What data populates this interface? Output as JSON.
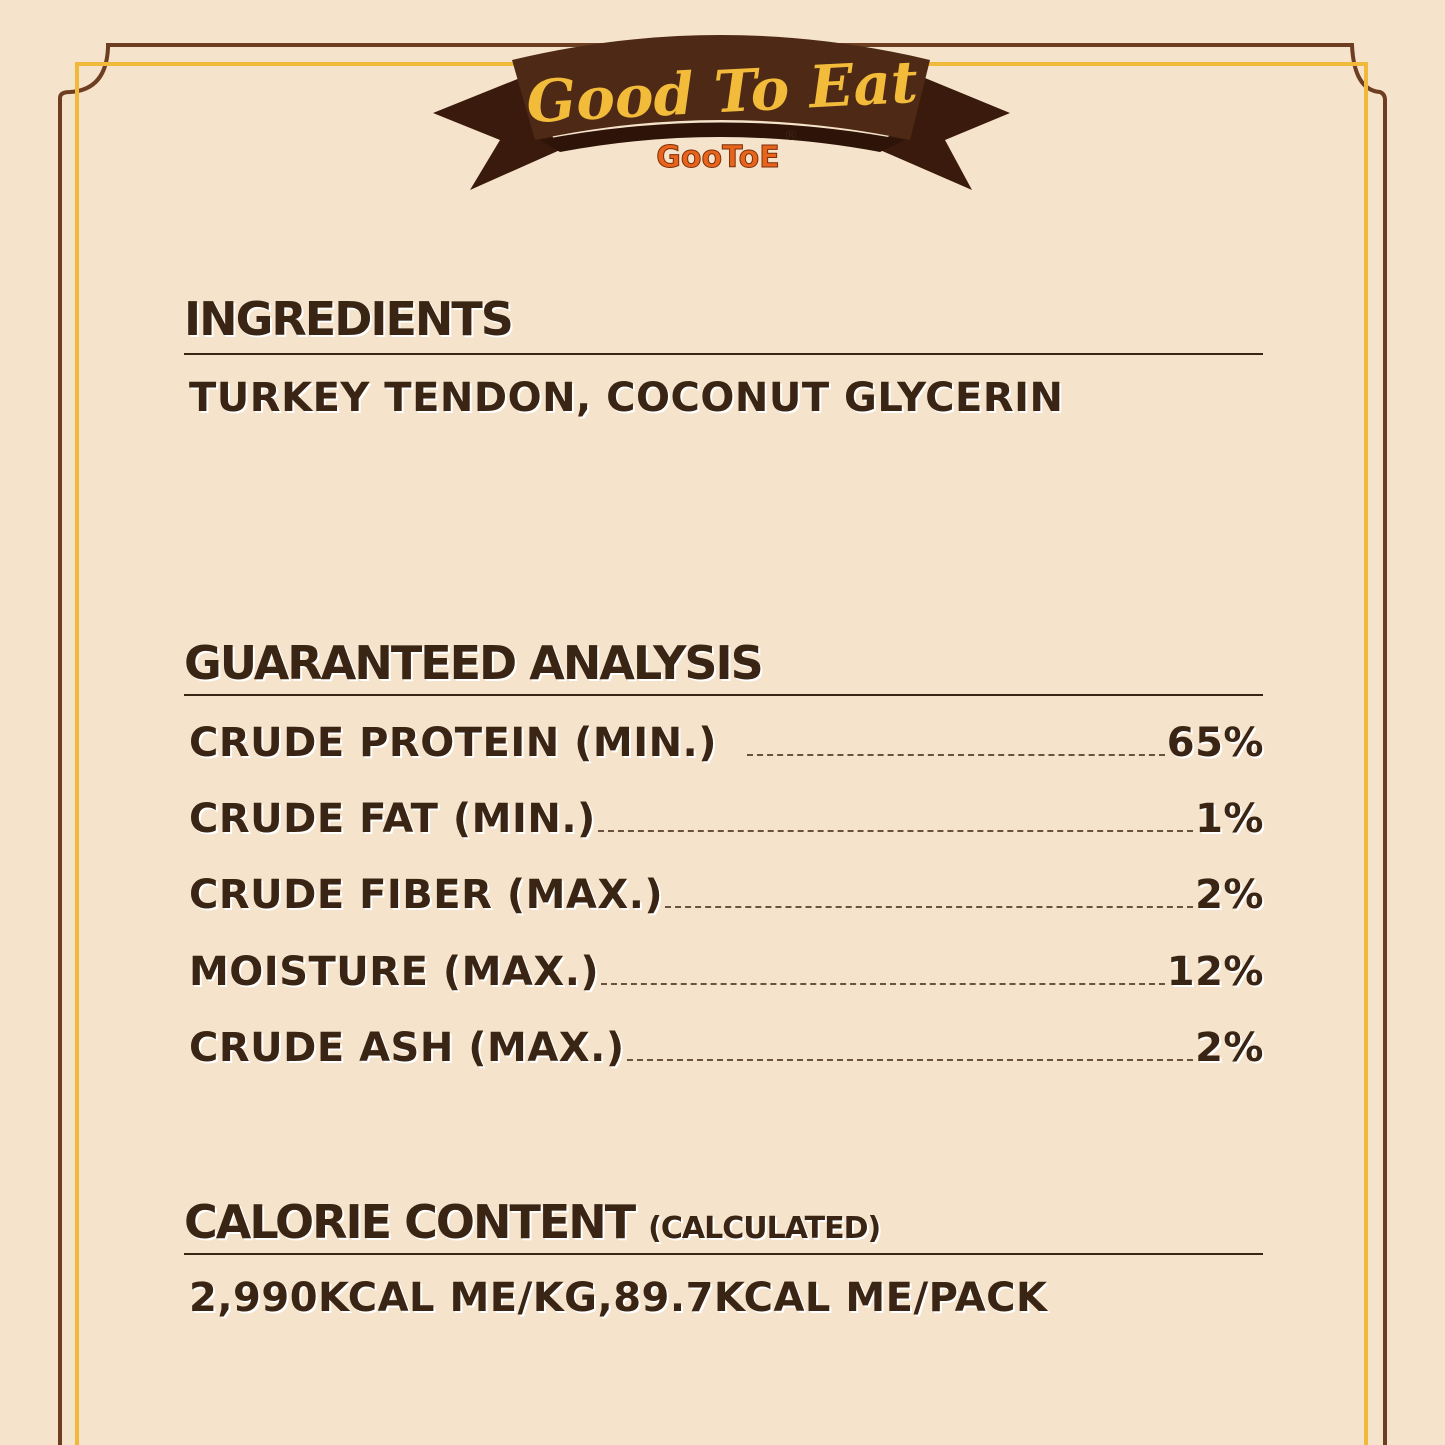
{
  "banner": {
    "title": "Good To Eat",
    "brand": "GooToE",
    "registered": "®"
  },
  "colors": {
    "background": "#f6e3cb",
    "text": "#3a2414",
    "banner": "#4a2614",
    "banner_text": "#f2bb3a",
    "brand": "#e8641c",
    "outer_border": "#6e3e22",
    "inner_border": "#f0b93a"
  },
  "ingredients": {
    "heading": "INGREDIENTS",
    "text": "TURKEY TENDON, COCONUT GLYCERIN"
  },
  "analysis": {
    "heading": "GUARANTEED ANALYSIS",
    "rows": [
      {
        "label": "CRUDE PROTEIN (MIN.)",
        "value": "65%"
      },
      {
        "label": "CRUDE FAT (MIN.)",
        "value": "1%"
      },
      {
        "label": "CRUDE FIBER (MAX.)",
        "value": "2%"
      },
      {
        "label": "MOISTURE (MAX.)",
        "value": "12%"
      },
      {
        "label": "CRUDE ASH (MAX.)",
        "value": "2%"
      }
    ]
  },
  "calorie": {
    "heading": "CALORIE CONTENT",
    "qualifier": "(CALCULATED)",
    "text": "2,990KCAL ME/KG,89.7KCAL ME/PACK"
  }
}
